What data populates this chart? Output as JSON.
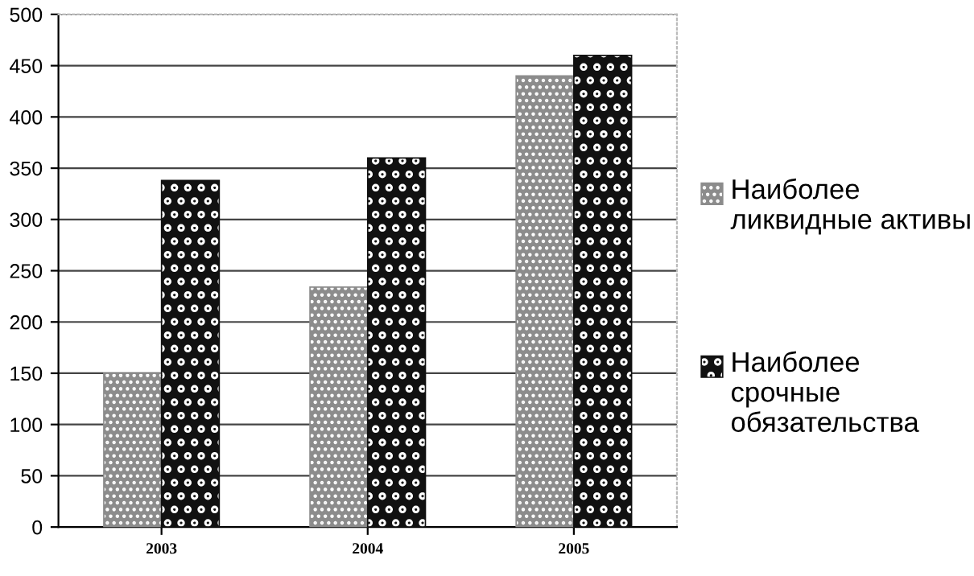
{
  "chart_data": {
    "type": "bar",
    "categories": [
      "2003",
      "2004",
      "2005"
    ],
    "series": [
      {
        "name": "Наиболее ликвидные активы",
        "color": "#8c8c8c",
        "values": [
          150,
          234,
          440
        ]
      },
      {
        "name": "Наиболее срочные обязательства",
        "color": "#111111",
        "values": [
          338,
          360,
          460
        ]
      }
    ],
    "ylim": [
      0,
      500
    ],
    "yticks": [
      0,
      50,
      100,
      150,
      200,
      250,
      300,
      350,
      400,
      450,
      500
    ],
    "grid": "y",
    "legend": "right"
  }
}
